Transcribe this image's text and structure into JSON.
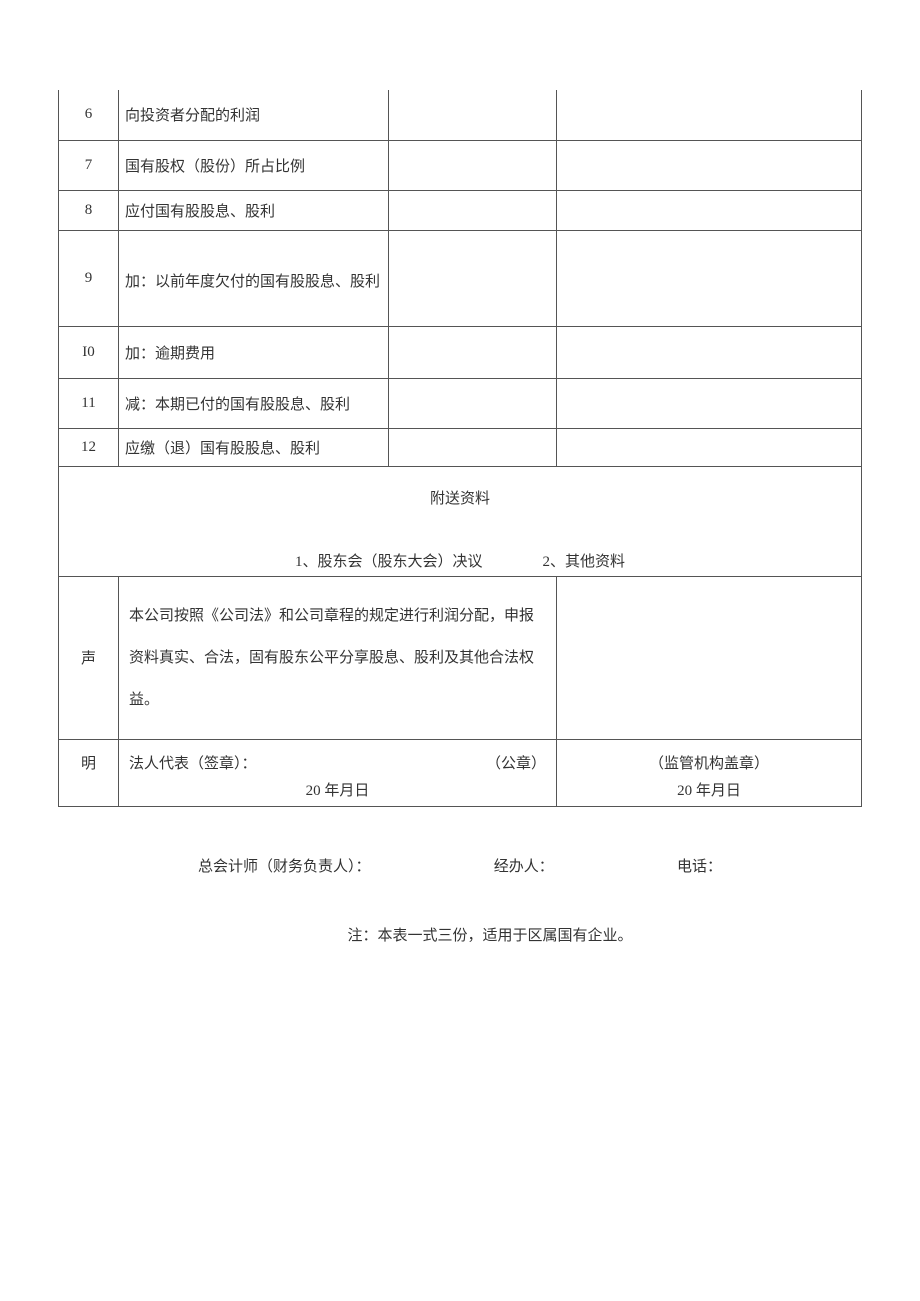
{
  "rows": {
    "r6": {
      "idx": "6",
      "label": "向投资者分配的利润"
    },
    "r7": {
      "idx": "7",
      "label": "国有股权（股份）所占比例"
    },
    "r8": {
      "idx": "8",
      "label": "应付国有股股息、股利"
    },
    "r9": {
      "idx": "9",
      "label": "加：以前年度欠付的国有股股息、股利"
    },
    "r10": {
      "idx": "I0",
      "label": "加：逾期费用"
    },
    "r11": {
      "idx": "11",
      "label": "减：本期已付的国有股股息、股利"
    },
    "r12": {
      "idx": "12",
      "label": "应缴（退）国有股股息、股利"
    }
  },
  "attachments": {
    "title": "附送资料",
    "item1": "1、股东会（股东大会）决议",
    "item2": "2、其他资料"
  },
  "declaration": {
    "label_top": "声",
    "label_bottom": "明",
    "text": "本公司按照《公司法》和公司章程的规定进行利润分配，申报资料真实、合法，固有股东公平分享股息、股利及其他合法权益。",
    "legal_rep": "法人代表（签章）：",
    "stamp": "（公章）",
    "date_left": "20 年月日",
    "supervisor": "（监管机构盖章）",
    "date_right": "20 年月日"
  },
  "footer": {
    "accountant": "总会计师（财务负责人）：",
    "handler": "经办人：",
    "phone": "电话：",
    "note": "注：本表一式三份，适用于区属国有企业。"
  },
  "style": {
    "border_color": "#555555",
    "text_color": "#333333",
    "bg": "#ffffff",
    "font_family": "SimSun",
    "body_fontsize": 15
  }
}
